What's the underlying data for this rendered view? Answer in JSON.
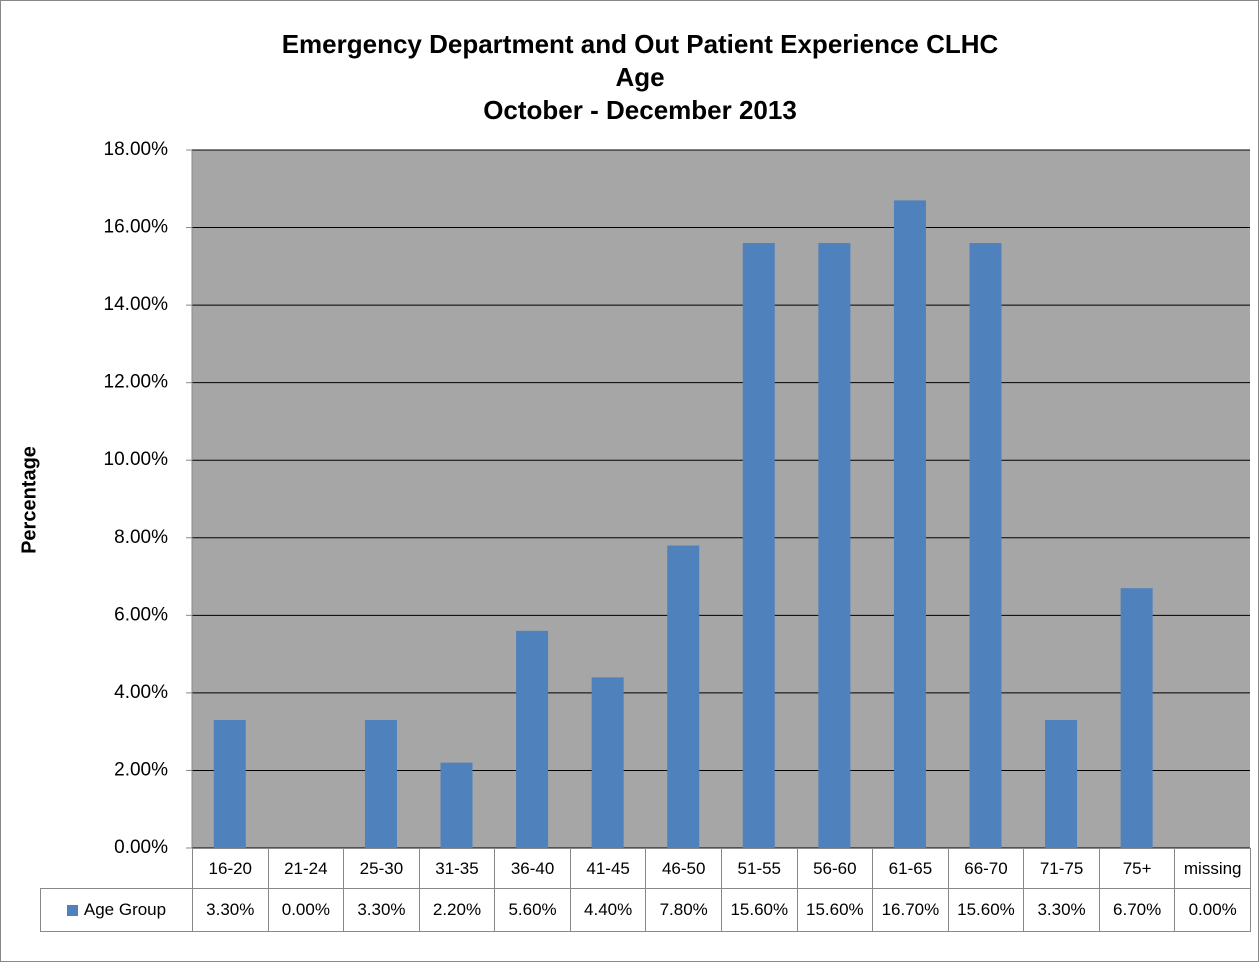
{
  "chart_data": {
    "type": "bar",
    "title": [
      "Emergency Department and Out Patient Experience CLHC",
      "Age",
      "October - December 2013"
    ],
    "y_label": "Percentage",
    "categories": [
      "16-20",
      "21-24",
      "25-30",
      "31-35",
      "36-40",
      "41-45",
      "46-50",
      "51-55",
      "56-60",
      "61-65",
      "66-70",
      "71-75",
      "75+",
      "missing"
    ],
    "series": [
      {
        "name": "Age Group",
        "color": "#4f81bd",
        "values": [
          3.3,
          0,
          3.3,
          2.2,
          5.6,
          4.4,
          7.8,
          15.6,
          15.6,
          16.7,
          15.6,
          3.3,
          6.7,
          0
        ],
        "value_labels": [
          "3.30%",
          "0.00%",
          "3.30%",
          "2.20%",
          "5.60%",
          "4.40%",
          "7.80%",
          "15.60%",
          "15.60%",
          "16.70%",
          "15.60%",
          "3.30%",
          "6.70%",
          "0.00%"
        ]
      }
    ],
    "ylim": [
      0,
      18
    ],
    "yticks": [
      {
        "value": 0,
        "label": "0.00%"
      },
      {
        "value": 2,
        "label": "2.00%"
      },
      {
        "value": 4,
        "label": "4.00%"
      },
      {
        "value": 6,
        "label": "6.00%"
      },
      {
        "value": 8,
        "label": "8.00%"
      },
      {
        "value": 10,
        "label": "10.00%"
      },
      {
        "value": 12,
        "label": "12.00%"
      },
      {
        "value": 14,
        "label": "14.00%"
      },
      {
        "value": 16,
        "label": "16.00%"
      },
      {
        "value": 18,
        "label": "18.00%"
      }
    ],
    "grid": true,
    "plot_background": "#a6a6a6"
  }
}
